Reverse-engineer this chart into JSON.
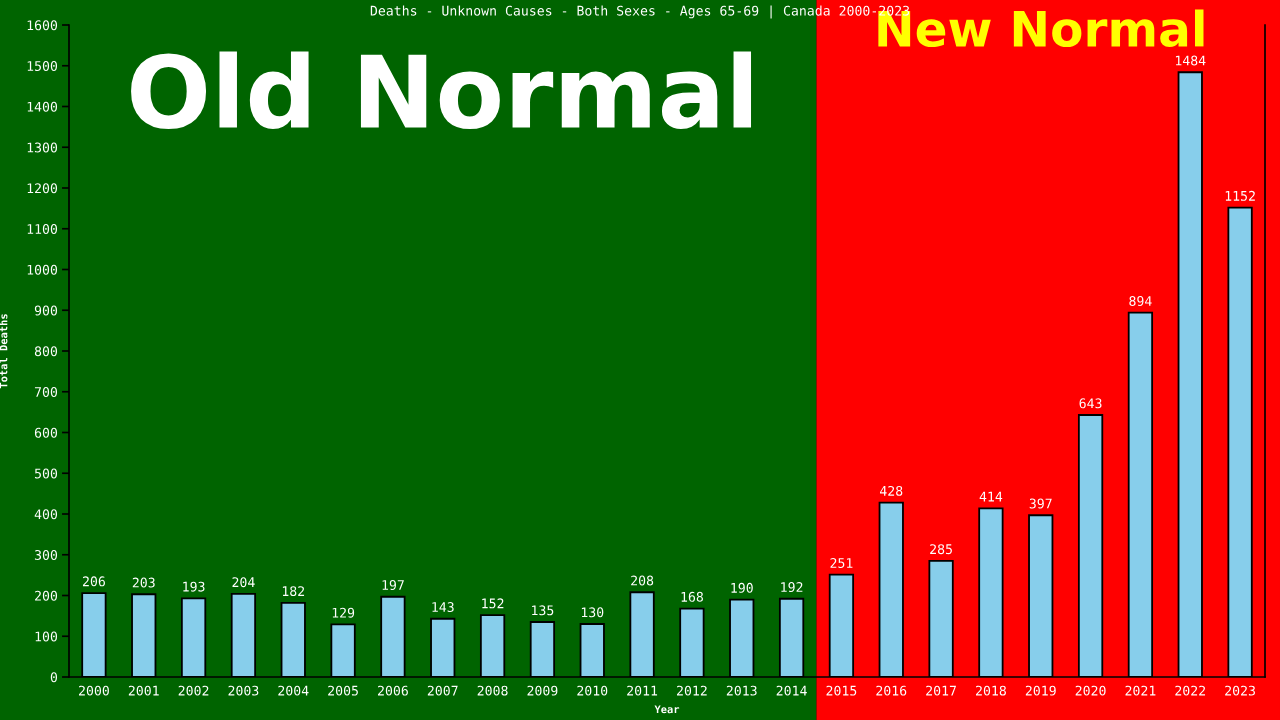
{
  "chart_data": {
    "type": "bar",
    "title": "Deaths - Unknown Causes - Both Sexes - Ages 65-69 | Canada 2000-2023",
    "xlabel": "Year",
    "ylabel": "Total Deaths",
    "categories": [
      "2000",
      "2001",
      "2002",
      "2003",
      "2004",
      "2005",
      "2006",
      "2007",
      "2008",
      "2009",
      "2010",
      "2011",
      "2012",
      "2013",
      "2014",
      "2015",
      "2016",
      "2017",
      "2018",
      "2019",
      "2020",
      "2021",
      "2022",
      "2023"
    ],
    "values": [
      206,
      203,
      193,
      204,
      182,
      129,
      197,
      143,
      152,
      135,
      130,
      208,
      168,
      190,
      192,
      251,
      428,
      285,
      414,
      397,
      643,
      894,
      1484,
      1152
    ],
    "color": "#87ceeb",
    "ylim": [
      0,
      1600
    ],
    "yticks": [
      0,
      100,
      200,
      300,
      400,
      500,
      600,
      700,
      800,
      900,
      1000,
      1100,
      1200,
      1300,
      1400,
      1500,
      1600
    ],
    "data_labels": true,
    "bands": [
      {
        "axis": "x",
        "from": "2000",
        "to": "2014",
        "label": "Old Normal",
        "color": "#006400"
      },
      {
        "axis": "x",
        "from": "2015",
        "to": "2023",
        "label": "New Normal",
        "color": "#ff0000"
      }
    ]
  }
}
